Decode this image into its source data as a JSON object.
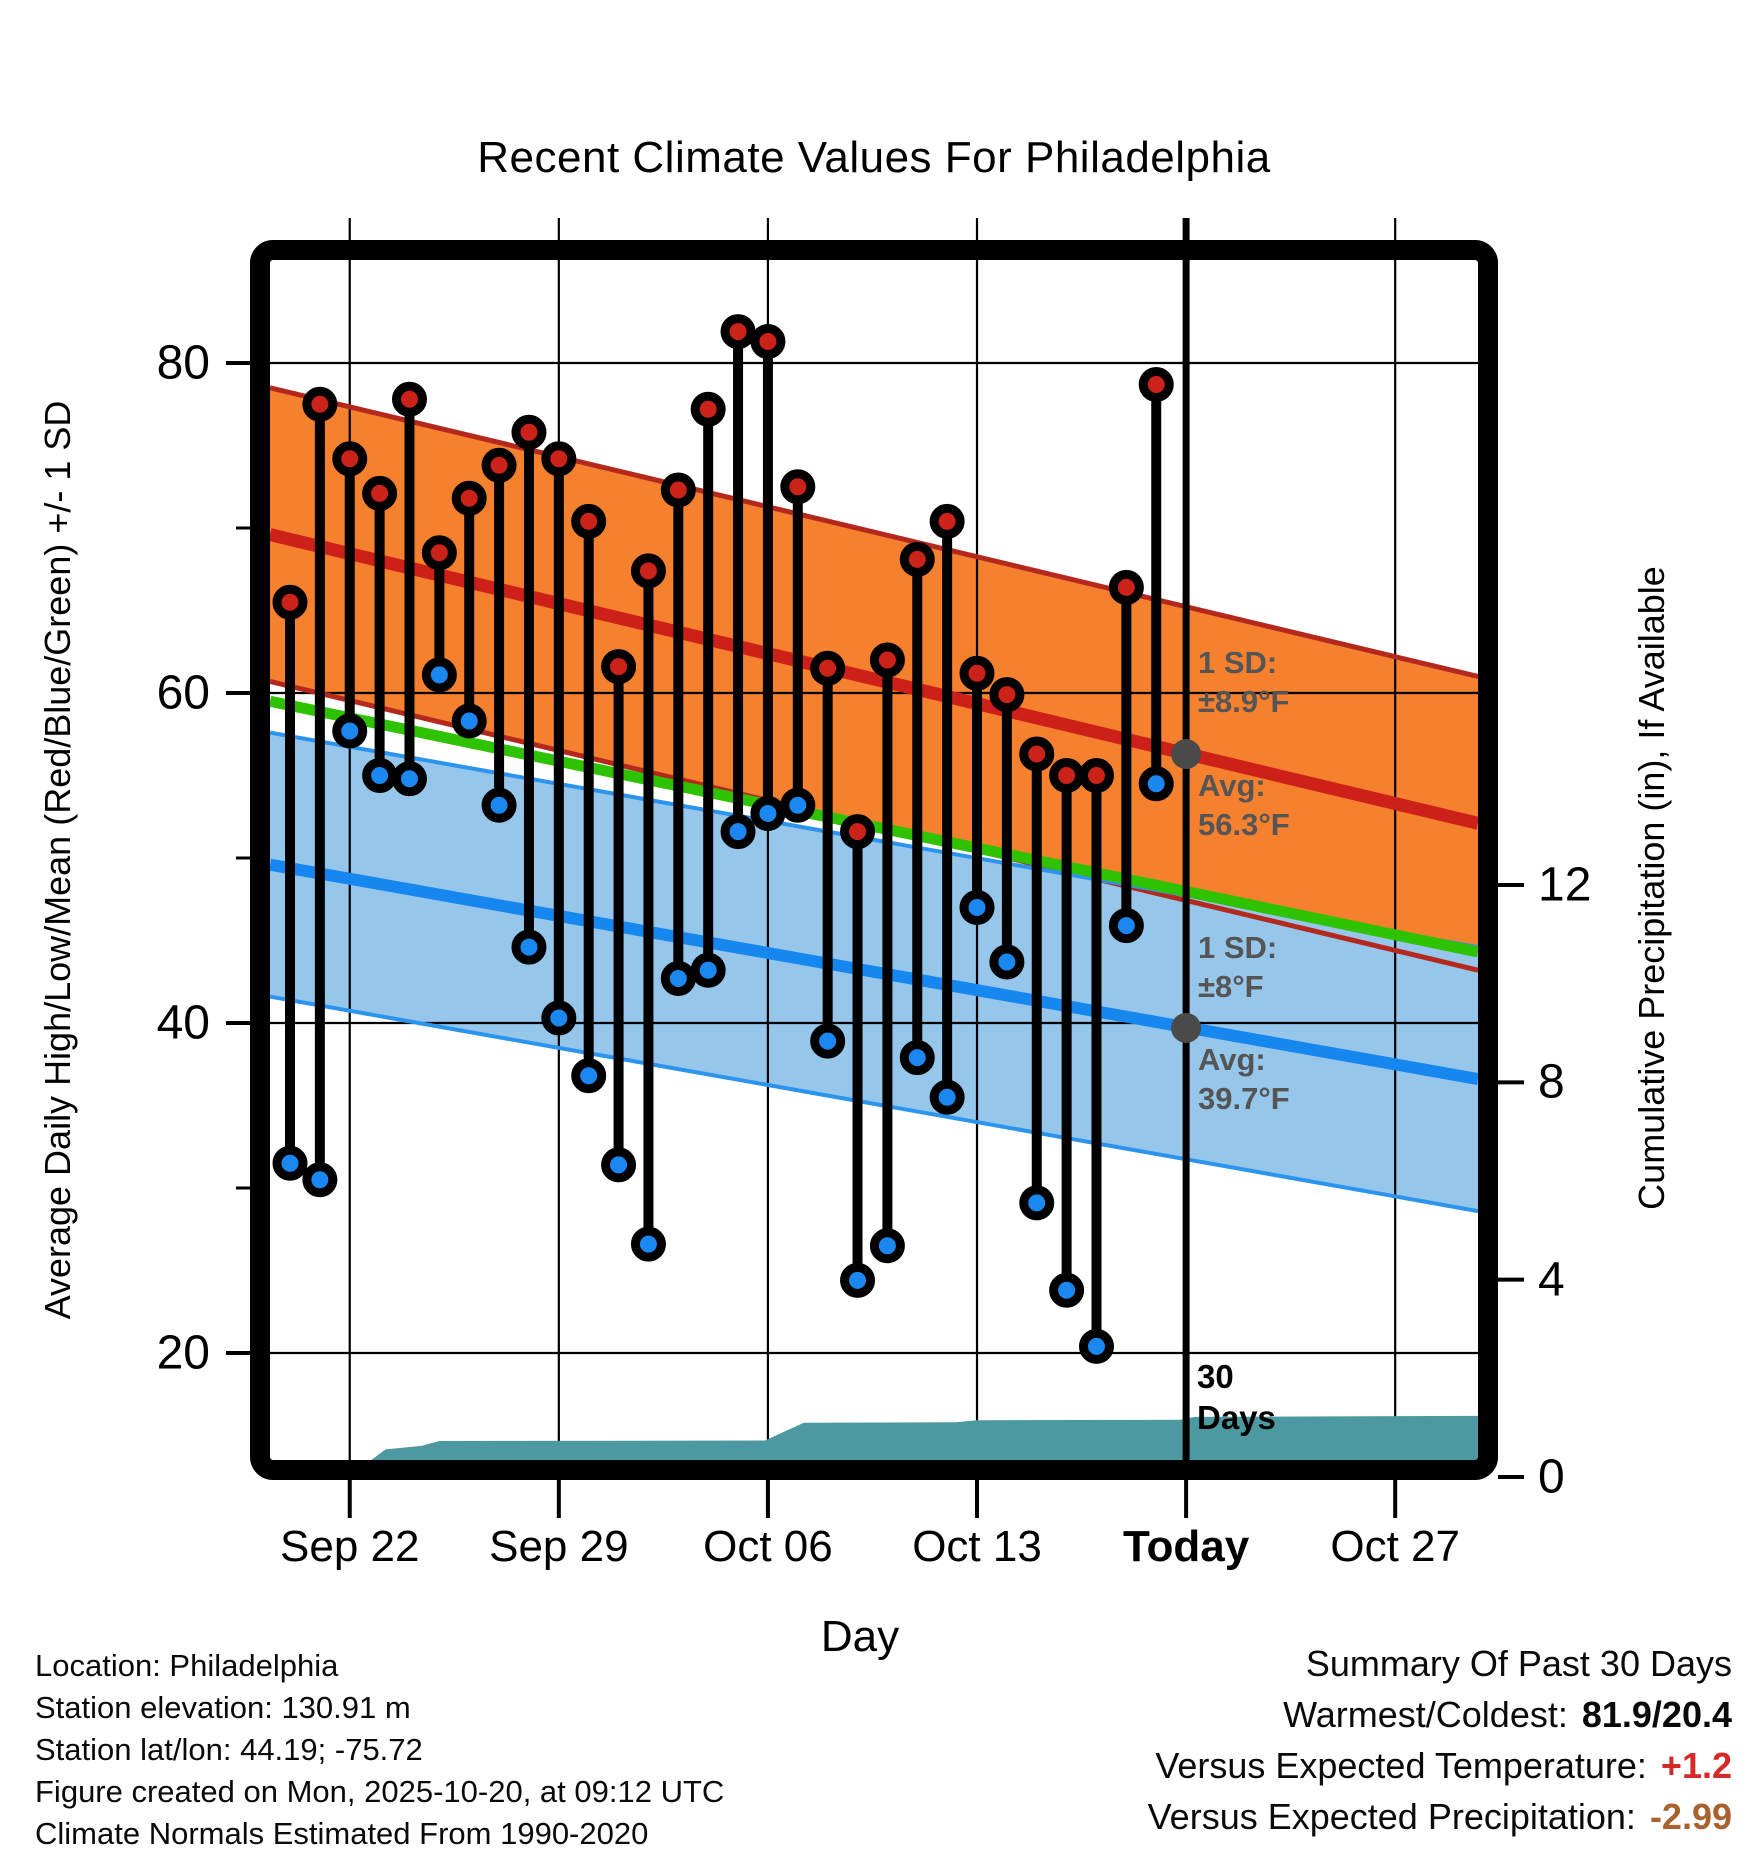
{
  "title": "Recent Climate Values For Philadelphia",
  "axes": {
    "left_label": "Average Daily High/Low/Mean (Red/Blue/Green) +/- 1 SD",
    "right_label": "Cumulative Precipitation (in), If Available",
    "x_label": "Day"
  },
  "chart_data": {
    "type": "combo",
    "title": "Recent Climate Values For Philadelphia",
    "temp_axis": {
      "ticks": [
        80,
        60,
        40,
        20
      ],
      "minor_ticks": [
        70,
        50,
        30
      ]
    },
    "precip_axis": {
      "ticks": [
        12,
        8,
        4,
        0
      ]
    },
    "x_axis": {
      "tick_labels": [
        "Sep 22",
        "Sep 29",
        "Oct 06",
        "Oct 13",
        "Today",
        "Oct 27"
      ],
      "tick_day_index": [
        2,
        9,
        16,
        23,
        30,
        37
      ],
      "today_day_index": 30
    },
    "days": [
      {
        "date": "Sep 20",
        "high": 65.5,
        "low": 31.5
      },
      {
        "date": "Sep 21",
        "high": 77.5,
        "low": 30.5
      },
      {
        "date": "Sep 22",
        "high": 74.2,
        "low": 57.7
      },
      {
        "date": "Sep 23",
        "high": 72.1,
        "low": 55.0
      },
      {
        "date": "Sep 24",
        "high": 77.8,
        "low": 54.8
      },
      {
        "date": "Sep 25",
        "high": 68.5,
        "low": 61.1
      },
      {
        "date": "Sep 26",
        "high": 71.8,
        "low": 58.3
      },
      {
        "date": "Sep 27",
        "high": 73.8,
        "low": 53.2
      },
      {
        "date": "Sep 28",
        "high": 75.8,
        "low": 44.6
      },
      {
        "date": "Sep 29",
        "high": 74.2,
        "low": 40.3
      },
      {
        "date": "Sep 30",
        "high": 70.4,
        "low": 36.8
      },
      {
        "date": "Oct 01",
        "high": 61.6,
        "low": 31.4
      },
      {
        "date": "Oct 02",
        "high": 67.4,
        "low": 26.6
      },
      {
        "date": "Oct 03",
        "high": 72.3,
        "low": 42.7
      },
      {
        "date": "Oct 04",
        "high": 77.2,
        "low": 43.2
      },
      {
        "date": "Oct 05",
        "high": 81.9,
        "low": 51.6
      },
      {
        "date": "Oct 06",
        "high": 81.3,
        "low": 52.7
      },
      {
        "date": "Oct 07",
        "high": 72.5,
        "low": 53.2
      },
      {
        "date": "Oct 08",
        "high": 61.5,
        "low": 38.9
      },
      {
        "date": "Oct 09",
        "high": 51.6,
        "low": 24.4
      },
      {
        "date": "Oct 10",
        "high": 62.0,
        "low": 26.5
      },
      {
        "date": "Oct 11",
        "high": 68.1,
        "low": 37.9
      },
      {
        "date": "Oct 12",
        "high": 70.4,
        "low": 35.5
      },
      {
        "date": "Oct 13",
        "high": 61.2,
        "low": 47.0
      },
      {
        "date": "Oct 14",
        "high": 59.9,
        "low": 43.7
      },
      {
        "date": "Oct 15",
        "high": 56.3,
        "low": 29.1
      },
      {
        "date": "Oct 16",
        "high": 55.0,
        "low": 23.8
      },
      {
        "date": "Oct 17",
        "high": 55.0,
        "low": 20.4
      },
      {
        "date": "Oct 18",
        "high": 66.4,
        "low": 45.9
      },
      {
        "date": "Oct 19",
        "high": 78.7,
        "low": 54.5
      }
    ],
    "normals_f": {
      "avg_high": {
        "left_edge": 69.6,
        "right_edge": 52.1,
        "today": 56.3,
        "sd": 8.9
      },
      "avg_low": {
        "left_edge": 49.6,
        "right_edge": 36.6,
        "today": 39.7,
        "sd": 8.0
      },
      "mean": {
        "left_edge": 59.5,
        "right_edge": 44.3
      }
    },
    "precip_cumulative_in": [
      [
        0,
        0
      ],
      [
        2,
        0.02
      ],
      [
        3.2,
        0.56
      ],
      [
        4.4,
        0.63
      ],
      [
        5,
        0.73
      ],
      [
        15.9,
        0.74
      ],
      [
        17.2,
        1.1
      ],
      [
        22.3,
        1.11
      ],
      [
        23,
        1.15
      ],
      [
        29.8,
        1.16
      ],
      [
        30.3,
        1.22
      ],
      [
        40.2,
        1.24
      ]
    ]
  },
  "annotations": {
    "high_sd": [
      "1 SD:",
      "±8.9°F"
    ],
    "high_avg": [
      "Avg:",
      "56.3°F"
    ],
    "low_sd": [
      "1 SD:",
      "±8°F"
    ],
    "low_avg": [
      "Avg:",
      "39.7°F"
    ],
    "precip_label": [
      "30",
      "Days"
    ]
  },
  "footer_left": {
    "lines": [
      "Location: Philadelphia",
      "Station elevation: 130.91 m",
      "Station lat/lon: 44.19; -75.72",
      "Figure created on Mon, 2025-10-20, at 09:12 UTC",
      "Climate Normals Estimated From 1990-2020"
    ]
  },
  "summary": {
    "title": "Summary Of Past 30 Days",
    "warmest_coldest_label": "Warmest/Coldest:",
    "warmest_coldest_value": "81.9/20.4",
    "vs_temp_label": "Versus Expected Temperature:",
    "vs_temp_value": "+1.2",
    "vs_precip_label": "Versus Expected Precipitation:",
    "vs_precip_value": "-2.99"
  },
  "colors": {
    "high_band_fill": "#F5812F",
    "high_band_edge": "#B5281E",
    "high_avg_line": "#CC2018",
    "low_band_fill": "#96C6EA",
    "low_band_edge": "#2B94EE",
    "low_avg_line": "#1787F0",
    "mean_line": "#2EC200",
    "precip_fill": "#4D99A2",
    "high_dot": "#CB2219",
    "low_dot": "#1B87F0",
    "avg_dot": "#4A4A4A",
    "vs_temp_value_color": "#D42A2A",
    "vs_precip_value_color": "#A9622F"
  }
}
